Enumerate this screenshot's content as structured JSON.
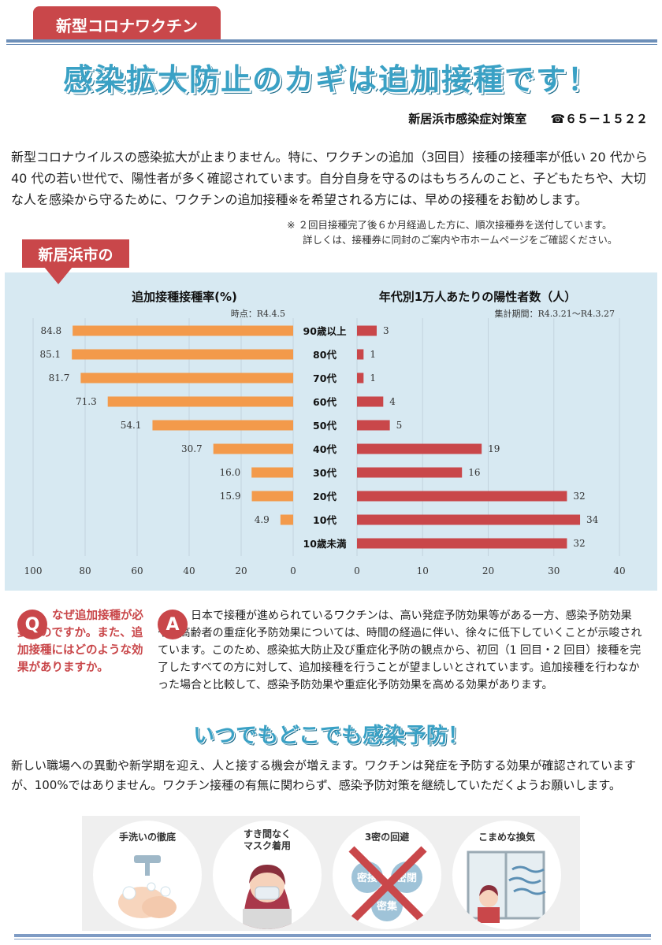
{
  "header": {
    "tag": "新型コロナワクチン",
    "title": "感染拡大防止のカギは追加接種です！",
    "office": "新居浜市感染症対策室",
    "phone": "☎６５－１５２２"
  },
  "intro": {
    "text": "新型コロナウイルスの感染拡大が止まりません。特に、ワクチンの追加（3回目）接種の接種率が低い 20 代から 40 代の若い世代で、陽性者が多く確認されています。自分自身を守るのはもちろんのこと、子どもたちや、大切な人を感染から守るために、ワクチンの追加接種※を希望される方には、早めの接種をお勧めします。",
    "note_line1": "※ ２回目接種完了後６か月経過した方に、順次接種券を送付しています。",
    "note_line2": "詳しくは、接種券に同封のご案内や市ホームページをご確認ください。"
  },
  "callout": "新居浜市の",
  "chart_data": [
    {
      "type": "bar",
      "title": "追加接種接種率(%)",
      "note": "時点：R4.4.5",
      "categories": [
        "90歳以上",
        "80代",
        "70代",
        "60代",
        "50代",
        "40代",
        "30代",
        "20代",
        "10代",
        "10歳未満"
      ],
      "values": [
        84.8,
        85.1,
        81.7,
        71.3,
        54.1,
        30.7,
        16.0,
        15.9,
        4.9,
        null
      ],
      "value_labels": [
        "84.8",
        "85.1",
        "81.7",
        "71.3",
        "54.1",
        "30.7",
        "16.0",
        "15.9",
        "4.9",
        ""
      ],
      "xlim": [
        100,
        0
      ],
      "ticks": [
        "100",
        "80",
        "60",
        "40",
        "20",
        "0"
      ],
      "orientation": "horizontal-reversed",
      "color": "#f39a4b"
    },
    {
      "type": "bar",
      "title": "年代別1万人あたりの陽性者数（人）",
      "note": "集計期間：R4.3.21～R4.3.27",
      "categories": [
        "90歳以上",
        "80代",
        "70代",
        "60代",
        "50代",
        "40代",
        "30代",
        "20代",
        "10代",
        "10歳未満"
      ],
      "values": [
        3,
        1,
        1,
        4,
        5,
        19,
        16,
        32,
        34,
        32
      ],
      "xlim": [
        0,
        40
      ],
      "ticks": [
        "0",
        "10",
        "20",
        "30",
        "40"
      ],
      "orientation": "horizontal",
      "color": "#c9474a"
    }
  ],
  "qa": {
    "q_badge": "Q",
    "question": "なぜ追加接種が必要なのですか。また、追加接種にはどのような効果がありますか。",
    "a_badge": "A",
    "answer": "日本で接種が進められているワクチンは、高い発症予防効果等がある一方、感染予防効果や、高齢者の重症化予防効果については、時間の経過に伴い、徐々に低下していくことが示唆されています。このため、感染拡大防止及び重症化予防の観点から、初回（1 回目・2 回目）接種を完了したすべての方に対して、追加接種を行うことが望ましいとされています。追加接種を行わなかった場合と比較して、感染予防効果や重症化予防効果を高める効果があります。"
  },
  "prevention": {
    "title": "いつでもどこでも感染予防！",
    "text": "新しい職場への異動や新学期を迎え、人と接する機会が増えます。ワクチンは発症を予防する効果が確認されていますが、100%ではありません。ワクチン接種の有無に関わらず、感染予防対策を継続していただくようお願いします。",
    "items": [
      {
        "label": "手洗いの徹底",
        "icon": "handwash-icon"
      },
      {
        "label": "すき間なく\nマスク着用",
        "icon": "mask-icon"
      },
      {
        "label": "3密の回避",
        "icon": "avoid-3c-icon",
        "words": [
          "密接",
          "密閉",
          "密集"
        ]
      },
      {
        "label": "こまめな換気",
        "icon": "ventilation-icon"
      }
    ]
  }
}
